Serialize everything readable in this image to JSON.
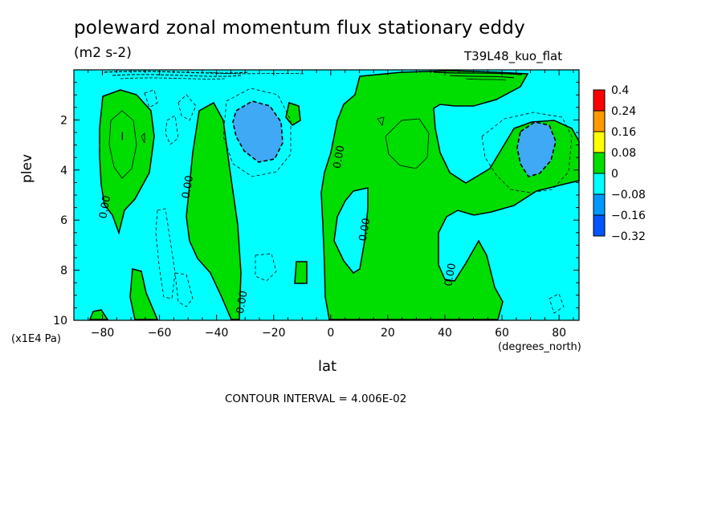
{
  "chart_data": {
    "type": "heatmap",
    "title": "poleward zonal momentum flux stationary eddy",
    "units": "(m2 s-2)",
    "run_label": "T39L48_kuo_flat",
    "xlabel": "lat",
    "ylabel": "plev",
    "x_unit_label": "(degrees_north)",
    "y_unit_label": "(x1E4 Pa)",
    "xlim": [
      -90,
      87
    ],
    "ylim": [
      10,
      0
    ],
    "x_ticks": [
      -80,
      -60,
      -40,
      -20,
      0,
      20,
      40,
      60,
      80
    ],
    "y_ticks": [
      2,
      4,
      6,
      8,
      10
    ],
    "contour_interval_text": "CONTOUR INTERVAL = 4.006E-02",
    "contour_labels": [
      {
        "text": "0.00",
        "lat": -78,
        "plev": 5.5
      },
      {
        "text": "0.00",
        "lat": -49,
        "plev": 4.7
      },
      {
        "text": "0.00",
        "lat": -30,
        "plev": 9.3
      },
      {
        "text": "0.00",
        "lat": 4,
        "plev": 3.5
      },
      {
        "text": "0.00",
        "lat": 13,
        "plev": 6.4
      },
      {
        "text": "0.00",
        "lat": 43,
        "plev": 8.2
      },
      {
        "text": "I",
        "lat": -73,
        "plev": 2.8
      }
    ],
    "legend": {
      "levels": [
        "0.4",
        "0.24",
        "0.16",
        "0.08",
        "0",
        "-0.08",
        "-0.16",
        "-0.32"
      ],
      "colors": [
        "#ff0000",
        "#ff9900",
        "#ffff00",
        "#00dd00",
        "#00ffff",
        "#0099ff",
        "#0055ff"
      ]
    },
    "fill_colors": {
      "positive": "#00dd00",
      "neutral": "#00ffff",
      "negative": "#3fa9f5"
    }
  }
}
